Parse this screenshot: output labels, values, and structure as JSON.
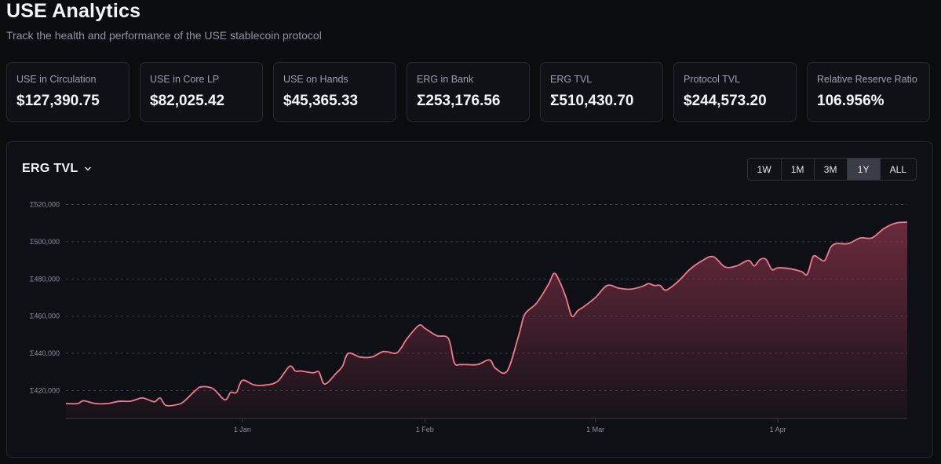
{
  "header": {
    "title": "USE Analytics",
    "subtitle": "Track the health and performance of the USE stablecoin protocol"
  },
  "stats": [
    {
      "label": "USE in Circulation",
      "value": "$127,390.75"
    },
    {
      "label": "USE in Core LP",
      "value": "$82,025.42"
    },
    {
      "label": "USE on Hands",
      "value": "$45,365.33"
    },
    {
      "label": "ERG in Bank",
      "value": "Σ253,176.56"
    },
    {
      "label": "ERG TVL",
      "value": "Σ510,430.70"
    },
    {
      "label": "Protocol TVL",
      "value": "$244,573.20"
    },
    {
      "label": "Relative Reserve Ratio",
      "value": "106.956%"
    }
  ],
  "chart_panel": {
    "selector_label": "ERG TVL",
    "ranges": [
      "1W",
      "1M",
      "3M",
      "1Y",
      "ALL"
    ],
    "active_range": "1Y"
  },
  "colors": {
    "line": "#f07a8e",
    "area_top": "#7a2f44",
    "background": "#0b0c10",
    "card_border": "#262933"
  },
  "chart_data": {
    "type": "area",
    "title": "",
    "xlabel": "",
    "ylabel": "",
    "y_prefix": "Σ",
    "ylim": [
      405000,
      524000
    ],
    "yticks": [
      420000,
      440000,
      460000,
      480000,
      500000,
      520000
    ],
    "ytick_labels": [
      "Σ420,000",
      "Σ440,000",
      "Σ460,000",
      "Σ480,000",
      "Σ500,000",
      "Σ520,000"
    ],
    "xlim": [
      "2023-12-02",
      "2024-04-23"
    ],
    "xticks": [
      "2024-01-01",
      "2024-02-01",
      "2024-03-01",
      "2024-04-01"
    ],
    "xtick_labels": [
      "1 Jan",
      "1 Feb",
      "1 Mar",
      "1 Apr"
    ],
    "grid": true,
    "x": [
      "2023-12-02",
      "2023-12-04",
      "2023-12-05",
      "2023-12-07",
      "2023-12-09",
      "2023-12-11",
      "2023-12-13",
      "2023-12-15",
      "2023-12-17",
      "2023-12-18",
      "2023-12-19",
      "2023-12-21",
      "2023-12-22",
      "2023-12-24",
      "2023-12-25",
      "2023-12-27",
      "2023-12-29",
      "2023-12-30",
      "2023-12-31",
      "2024-01-01",
      "2024-01-03",
      "2024-01-05",
      "2024-01-07",
      "2024-01-09",
      "2024-01-10",
      "2024-01-11",
      "2024-01-13",
      "2024-01-14",
      "2024-01-15",
      "2024-01-17",
      "2024-01-18",
      "2024-01-19",
      "2024-01-21",
      "2024-01-23",
      "2024-01-25",
      "2024-01-27",
      "2024-01-28",
      "2024-01-29",
      "2024-01-31",
      "2024-02-01",
      "2024-02-03",
      "2024-02-05",
      "2024-02-06",
      "2024-02-07",
      "2024-02-08",
      "2024-02-10",
      "2024-02-12",
      "2024-02-13",
      "2024-02-15",
      "2024-02-17",
      "2024-02-18",
      "2024-02-20",
      "2024-02-22",
      "2024-02-23",
      "2024-02-24",
      "2024-02-25",
      "2024-02-26",
      "2024-02-27",
      "2024-02-28",
      "2024-03-01",
      "2024-03-03",
      "2024-03-05",
      "2024-03-07",
      "2024-03-09",
      "2024-03-10",
      "2024-03-11",
      "2024-03-12",
      "2024-03-13",
      "2024-03-15",
      "2024-03-17",
      "2024-03-19",
      "2024-03-21",
      "2024-03-23",
      "2024-03-25",
      "2024-03-27",
      "2024-03-28",
      "2024-03-29",
      "2024-03-30",
      "2024-03-31",
      "2024-04-01",
      "2024-04-03",
      "2024-04-05",
      "2024-04-06",
      "2024-04-07",
      "2024-04-08",
      "2024-04-09",
      "2024-04-10",
      "2024-04-11",
      "2024-04-13",
      "2024-04-15",
      "2024-04-17",
      "2024-04-19",
      "2024-04-21",
      "2024-04-23"
    ],
    "series": [
      {
        "values": [
          413000,
          413000,
          414500,
          413000,
          413000,
          414200,
          414300,
          416000,
          414000,
          416000,
          412000,
          412500,
          414000,
          420000,
          422000,
          421000,
          415000,
          419000,
          419000,
          425500,
          423000,
          423000,
          425000,
          433000,
          430500,
          430500,
          429500,
          430000,
          423500,
          429500,
          433000,
          440000,
          438000,
          438000,
          441000,
          440000,
          443000,
          448000,
          455000,
          453500,
          449500,
          448000,
          435000,
          434000,
          434000,
          434000,
          436500,
          432000,
          430500,
          450000,
          461000,
          467000,
          477000,
          483000,
          478000,
          470000,
          460000,
          463000,
          465000,
          470000,
          476500,
          475000,
          474500,
          476000,
          477500,
          476500,
          476500,
          474000,
          478500,
          485000,
          489500,
          492000,
          486500,
          487000,
          490000,
          487000,
          490500,
          490500,
          485000,
          486000,
          485500,
          484000,
          482500,
          492000,
          491000,
          490000,
          497000,
          499000,
          499000,
          502000,
          502000,
          507000,
          510000,
          510500
        ]
      }
    ]
  }
}
